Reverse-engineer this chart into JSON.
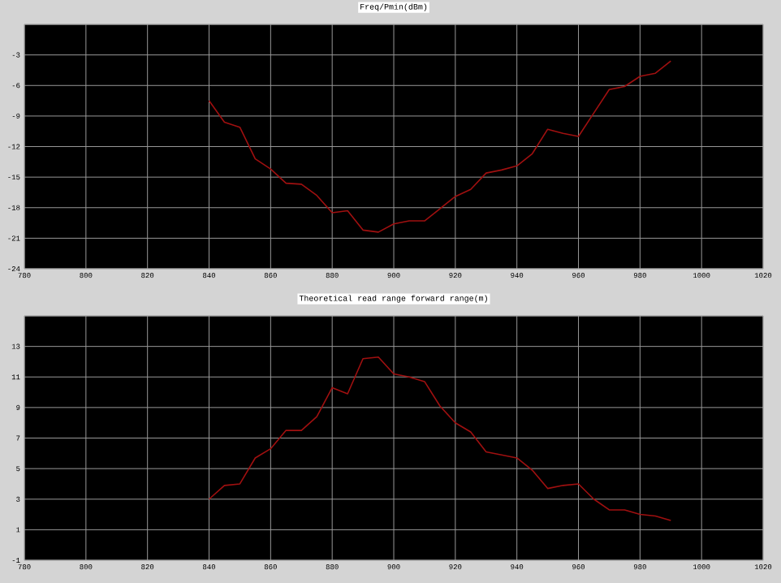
{
  "chart_data": [
    {
      "type": "line",
      "title": "Freq/Pmin(dBm)",
      "x": [
        840,
        845,
        850,
        855,
        860,
        865,
        870,
        875,
        880,
        885,
        890,
        895,
        900,
        905,
        910,
        915,
        920,
        925,
        930,
        935,
        940,
        945,
        950,
        955,
        960,
        965,
        970,
        975,
        980,
        985,
        990
      ],
      "series": [
        {
          "color": "#a01010",
          "values": [
            -7.5,
            -9.6,
            -10.1,
            -13.2,
            -14.2,
            -15.6,
            -15.7,
            -16.8,
            -18.5,
            -18.3,
            -20.2,
            -20.4,
            -19.6,
            -19.3,
            -19.3,
            -18.1,
            -16.9,
            -16.2,
            -14.6,
            -14.3,
            -13.9,
            -12.7,
            -10.3,
            -10.7,
            -11.0,
            -8.7,
            -6.4,
            -6.1,
            -5.1,
            -4.8,
            -3.6
          ]
        }
      ],
      "xlim": [
        780,
        1020
      ],
      "xticks": [
        780,
        800,
        820,
        840,
        860,
        880,
        900,
        920,
        940,
        960,
        980,
        1000,
        1020
      ],
      "ylim": [
        -24,
        0
      ],
      "yticks": [
        -24,
        -21,
        -18,
        -15,
        -12,
        -9,
        -6,
        -3,
        {
          "value": 0,
          "label": null
        }
      ],
      "grid": true,
      "marker": "none",
      "line_style": "solid"
    },
    {
      "type": "line",
      "title": "Theoretical read range forward range(m)",
      "x": [
        840,
        845,
        850,
        855,
        860,
        865,
        870,
        875,
        880,
        885,
        890,
        895,
        900,
        905,
        910,
        915,
        920,
        925,
        930,
        935,
        940,
        945,
        950,
        955,
        960,
        965,
        970,
        975,
        980,
        985,
        990
      ],
      "series": [
        {
          "color": "#a01010",
          "values": [
            3.0,
            3.9,
            4.0,
            5.7,
            6.3,
            7.5,
            7.5,
            8.4,
            10.3,
            9.9,
            12.2,
            12.3,
            11.2,
            11.0,
            10.7,
            9.1,
            8.0,
            7.4,
            6.1,
            5.9,
            5.7,
            4.9,
            3.7,
            3.9,
            4.0,
            3.0,
            2.3,
            2.3,
            2.0,
            1.9,
            1.6
          ]
        }
      ],
      "xlim": [
        780,
        1020
      ],
      "xticks": [
        780,
        800,
        820,
        840,
        860,
        880,
        900,
        920,
        940,
        960,
        980,
        1000,
        1020
      ],
      "ylim": [
        -1,
        15
      ],
      "yticks": [
        -1,
        1,
        3,
        5,
        7,
        9,
        11,
        13,
        {
          "value": 15,
          "label": null
        }
      ],
      "grid": true,
      "marker": "none",
      "line_style": "solid"
    }
  ]
}
